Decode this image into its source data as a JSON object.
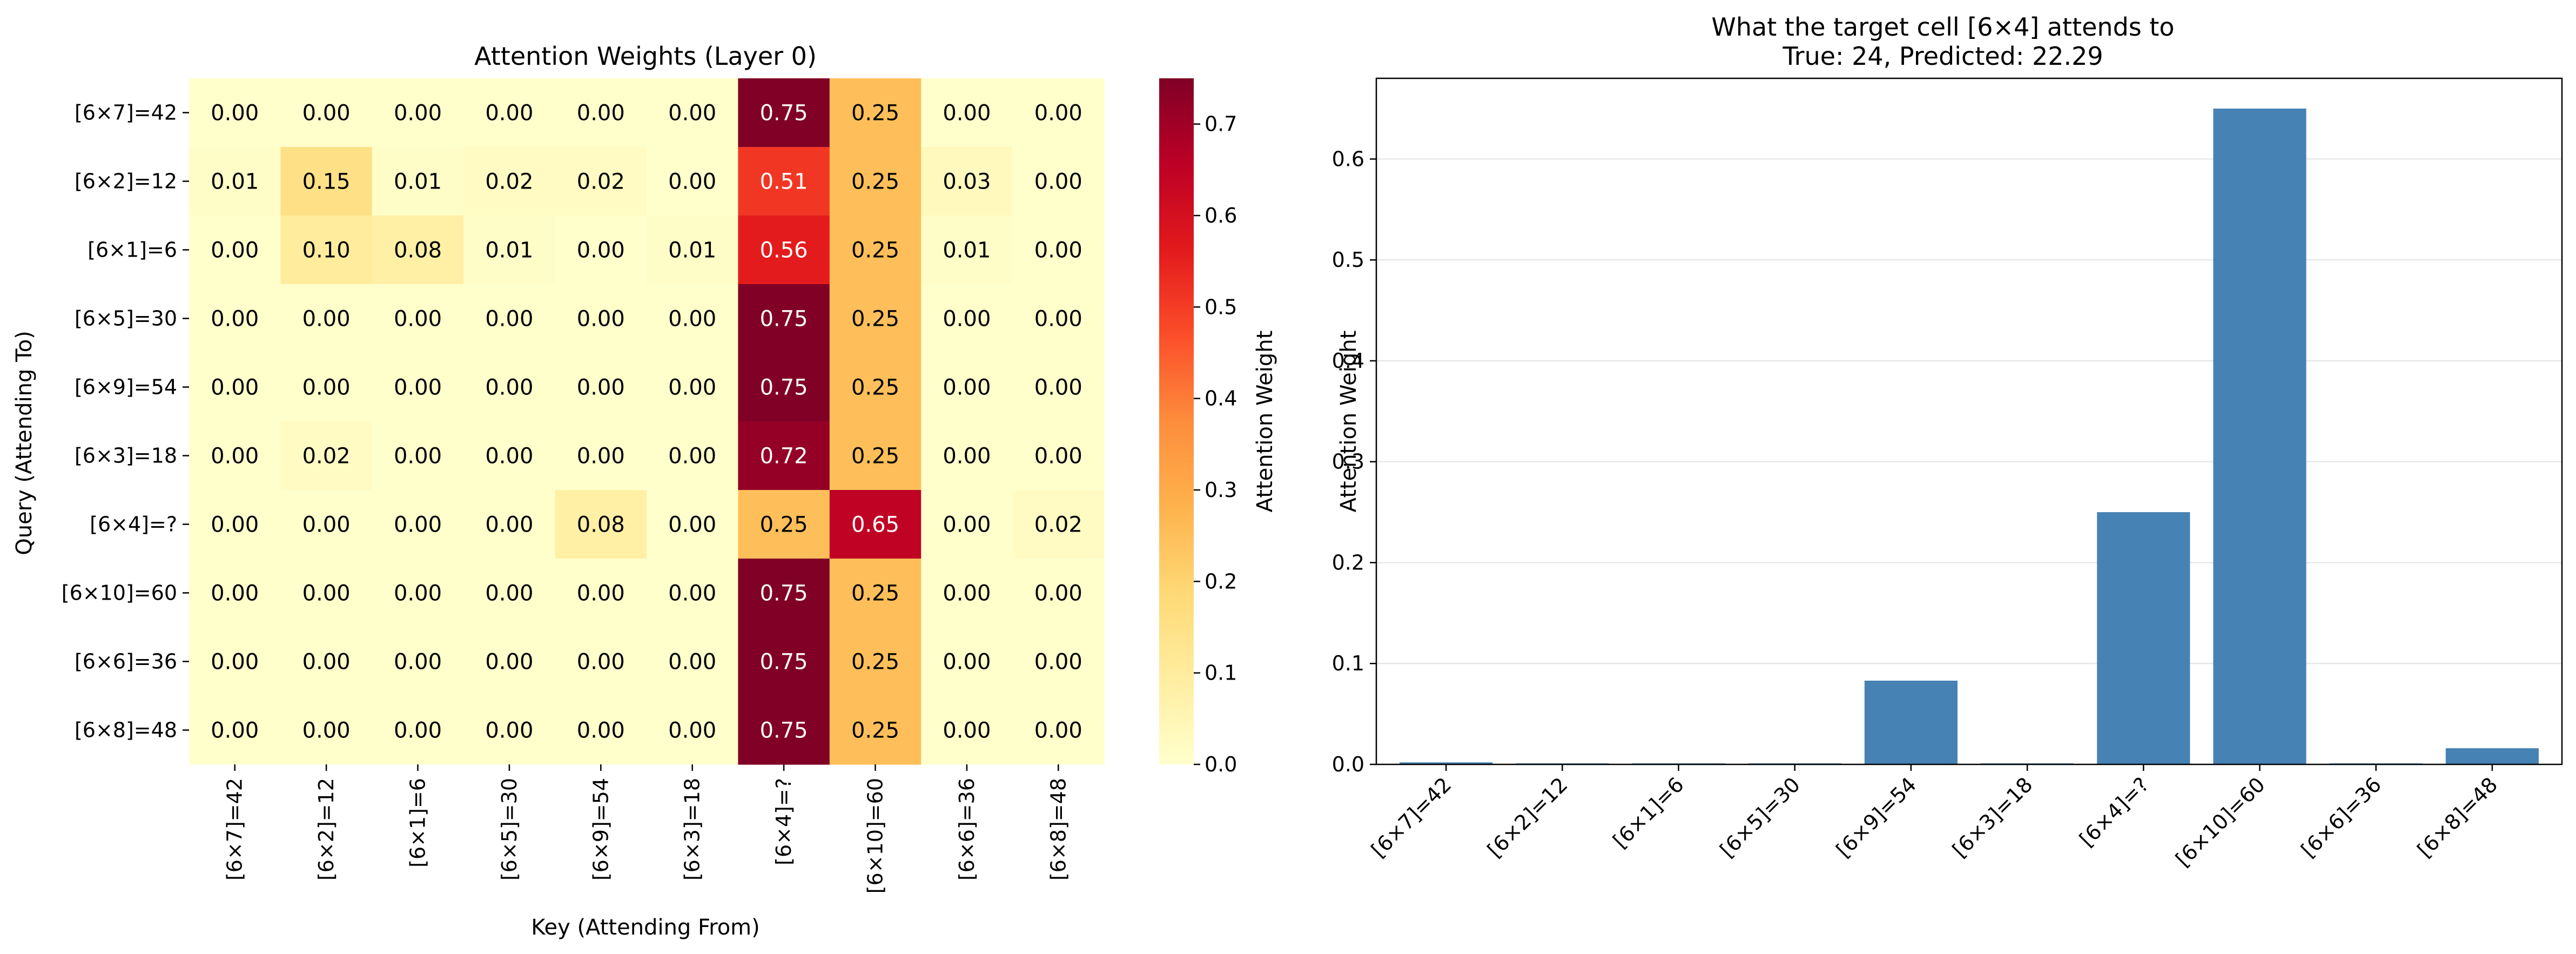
{
  "chart_data": [
    {
      "type": "heatmap",
      "title": "Attention Weights (Layer 0)",
      "xlabel": "Key (Attending From)",
      "ylabel": "Query (Attending To)",
      "x_categories": [
        "[6×7]=42",
        "[6×2]=12",
        "[6×1]=6",
        "[6×5]=30",
        "[6×9]=54",
        "[6×3]=18",
        "[6×4]=?",
        "[6×10]=60",
        "[6×6]=36",
        "[6×8]=48"
      ],
      "y_categories": [
        "[6×7]=42",
        "[6×2]=12",
        "[6×1]=6",
        "[6×5]=30",
        "[6×9]=54",
        "[6×3]=18",
        "[6×4]=?",
        "[6×10]=60",
        "[6×6]=36",
        "[6×8]=48"
      ],
      "values": [
        [
          0.0,
          0.0,
          0.0,
          0.0,
          0.0,
          0.0,
          0.75,
          0.25,
          0.0,
          0.0
        ],
        [
          0.01,
          0.15,
          0.01,
          0.02,
          0.02,
          0.0,
          0.51,
          0.25,
          0.03,
          0.0
        ],
        [
          0.0,
          0.1,
          0.08,
          0.01,
          0.0,
          0.01,
          0.56,
          0.25,
          0.01,
          0.0
        ],
        [
          0.0,
          0.0,
          0.0,
          0.0,
          0.0,
          0.0,
          0.75,
          0.25,
          0.0,
          0.0
        ],
        [
          0.0,
          0.0,
          0.0,
          0.0,
          0.0,
          0.0,
          0.75,
          0.25,
          0.0,
          0.0
        ],
        [
          0.0,
          0.02,
          0.0,
          0.0,
          0.0,
          0.0,
          0.72,
          0.25,
          0.0,
          0.0
        ],
        [
          0.0,
          0.0,
          0.0,
          0.0,
          0.08,
          0.0,
          0.25,
          0.65,
          0.0,
          0.02
        ],
        [
          0.0,
          0.0,
          0.0,
          0.0,
          0.0,
          0.0,
          0.75,
          0.25,
          0.0,
          0.0
        ],
        [
          0.0,
          0.0,
          0.0,
          0.0,
          0.0,
          0.0,
          0.75,
          0.25,
          0.0,
          0.0
        ],
        [
          0.0,
          0.0,
          0.0,
          0.0,
          0.0,
          0.0,
          0.75,
          0.25,
          0.0,
          0.0
        ]
      ],
      "colorbar": {
        "label": "Attention Weight",
        "ticks": [
          "0.0",
          "0.1",
          "0.2",
          "0.3",
          "0.4",
          "0.5",
          "0.6",
          "0.7"
        ],
        "vmin": 0,
        "vmax": 0.75,
        "colormap": "YlOrRd"
      },
      "annotation_text_colors": {
        "light": "#000000",
        "dark": "#ffffff"
      }
    },
    {
      "type": "bar",
      "title": "What the target cell [6×4] attends to",
      "subtitle": "True: 24, Predicted: 22.29",
      "xlabel": "",
      "ylabel": "Attention Weight",
      "categories": [
        "[6×7]=42",
        "[6×2]=12",
        "[6×1]=6",
        "[6×5]=30",
        "[6×9]=54",
        "[6×3]=18",
        "[6×4]=?",
        "[6×10]=60",
        "[6×6]=36",
        "[6×8]=48"
      ],
      "values": [
        0.002,
        0.001,
        0.001,
        0.001,
        0.083,
        0.001,
        0.25,
        0.65,
        0.001,
        0.016
      ],
      "ylim": [
        0,
        0.68
      ],
      "yticks": [
        "0.0",
        "0.1",
        "0.2",
        "0.3",
        "0.4",
        "0.5",
        "0.6"
      ],
      "grid": "horizontal",
      "bar_color": "#4682b4"
    }
  ]
}
